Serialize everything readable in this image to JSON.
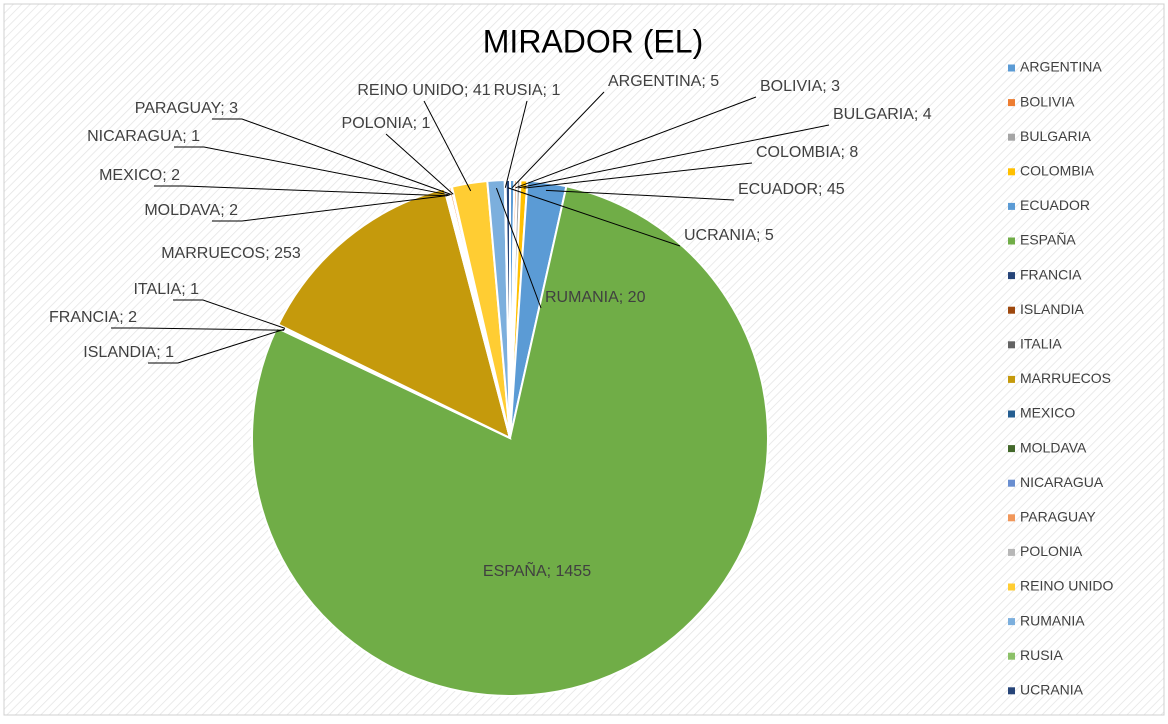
{
  "chart_data": {
    "type": "pie",
    "title": "MIRADOR (EL)",
    "categories": [
      "ARGENTINA",
      "BOLIVIA",
      "BULGARIA",
      "COLOMBIA",
      "ECUADOR",
      "ESPAÑA",
      "FRANCIA",
      "ISLANDIA",
      "ITALIA",
      "MARRUECOS",
      "MEXICO",
      "MOLDAVA",
      "NICARAGUA",
      "PARAGUAY",
      "POLONIA",
      "REINO UNIDO",
      "RUMANIA",
      "RUSIA",
      "UCRANIA"
    ],
    "values": [
      5,
      3,
      4,
      8,
      45,
      1455,
      2,
      1,
      1,
      253,
      2,
      2,
      1,
      3,
      1,
      41,
      20,
      1,
      5
    ],
    "value_labels": [
      "ARGENTINA; 5",
      "BOLIVIA; 3",
      "BULGARIA; 4",
      "COLOMBIA; 8",
      "ECUADOR; 45",
      "ESPAÑA; 1455",
      "FRANCIA; 2",
      "ISLANDIA; 1",
      "ITALIA; 1",
      "MARRUECOS; 253",
      "MEXICO; 2",
      "MOLDAVA; 2",
      "NICARAGUA; 1",
      "PARAGUAY; 3",
      "POLONIA; 1",
      "REINO UNIDO; 41",
      "RUMANIA; 20",
      "RUSIA; 1",
      "UCRANIA; 5"
    ],
    "colors": [
      "#5b9bd5",
      "#ed7d31",
      "#a5a5a5",
      "#ffc000",
      "#5b9bd5",
      "#70ad47",
      "#264478",
      "#9e480e",
      "#636363",
      "#c59a0c",
      "#255e91",
      "#43682b",
      "#698ed0",
      "#f1975a",
      "#b7b7b7",
      "#ffcd33",
      "#7cafdd",
      "#8cc168",
      "#264478"
    ],
    "legend": "right"
  }
}
